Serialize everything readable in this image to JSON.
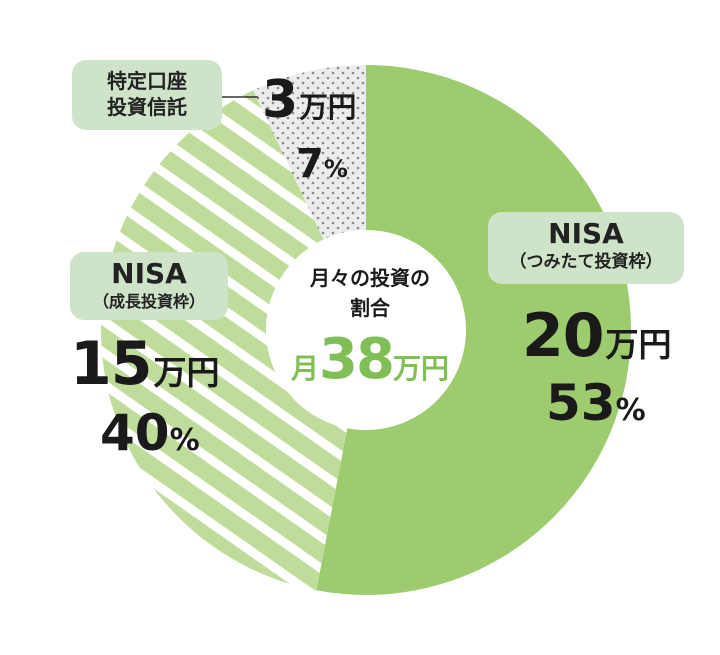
{
  "colors": {
    "nisa_tsumitate": "#9dcb6e",
    "nisa_seicho": "#bfdc9a",
    "tokutei": "#e4e4e4",
    "pill": "#cfe3c9",
    "center_highlight": "#7fbf55"
  },
  "chart_data": {
    "type": "pie",
    "donut": true,
    "center": {
      "line1": "月々の投資の",
      "line2": "割合",
      "prefix": "月",
      "total": "38",
      "unit": "万円"
    },
    "slices": [
      {
        "key": "tsumitate",
        "label_line1": "NISA",
        "label_line2": "（つみたて投資枠）",
        "amount": "20",
        "unit": "万円",
        "percent_text": "53",
        "percent_sym": "%",
        "value": 53
      },
      {
        "key": "seicho",
        "label_line1": "NISA",
        "label_line2": "（成長投資枠）",
        "amount": "15",
        "unit": "万円",
        "percent_text": "40",
        "percent_sym": "%",
        "value": 40
      },
      {
        "key": "tokutei",
        "label_line1": "特定口座",
        "label_line2": "投資信託",
        "amount": "3",
        "unit": "万円",
        "percent_text": "7",
        "percent_sym": "%",
        "value": 7
      }
    ]
  }
}
